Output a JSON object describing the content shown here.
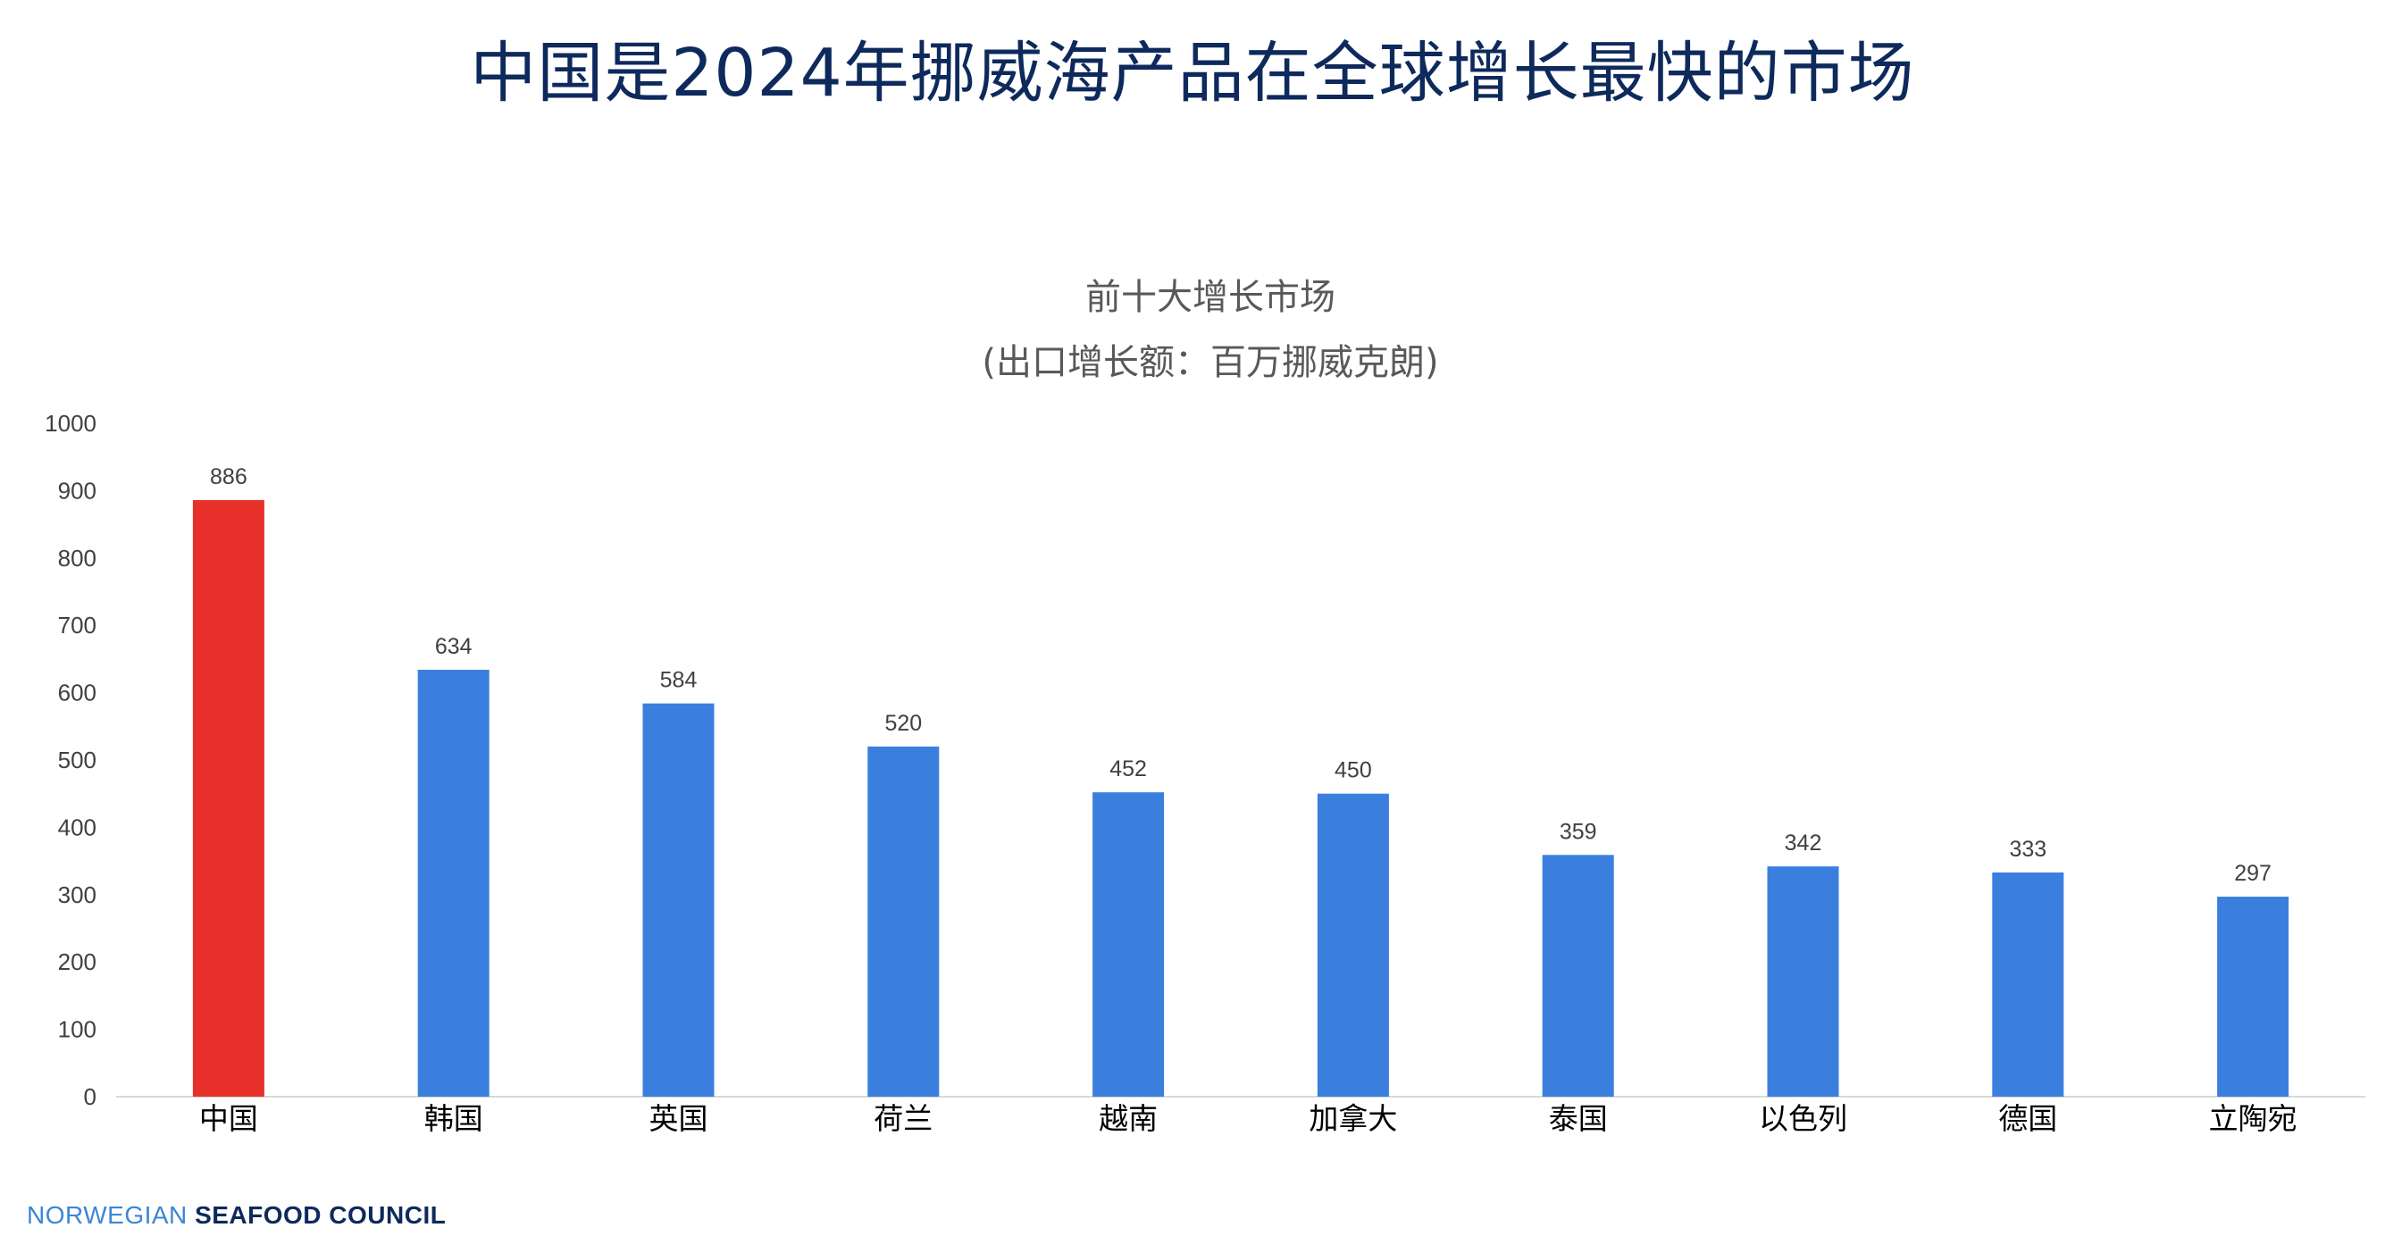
{
  "page": {
    "title": "中国是2024年挪威海产品在全球增长最快的市场",
    "brand_part1": "NORWEGIAN",
    "brand_part2": "SEAFOOD COUNCIL"
  },
  "colors": {
    "highlight": "#e8302a",
    "bar": "#3a7fde",
    "title": "#0e2a5c",
    "axis": "#d9d9d9"
  },
  "chart_data": {
    "type": "bar",
    "title": "前十大增长市场",
    "subtitle": "(出口增长额：百万挪威克朗)",
    "categories": [
      "中国",
      "韩国",
      "英国",
      "荷兰",
      "越南",
      "加拿大",
      "泰国",
      "以色列",
      "德国",
      "立陶宛"
    ],
    "values": [
      886,
      634,
      584,
      520,
      452,
      450,
      359,
      342,
      333,
      297
    ],
    "highlight_index": 0,
    "ylim": [
      0,
      1000
    ],
    "yticks": [
      0,
      100,
      200,
      300,
      400,
      500,
      600,
      700,
      800,
      900,
      1000
    ],
    "grid": false,
    "legend": "none",
    "data_labels": true
  }
}
